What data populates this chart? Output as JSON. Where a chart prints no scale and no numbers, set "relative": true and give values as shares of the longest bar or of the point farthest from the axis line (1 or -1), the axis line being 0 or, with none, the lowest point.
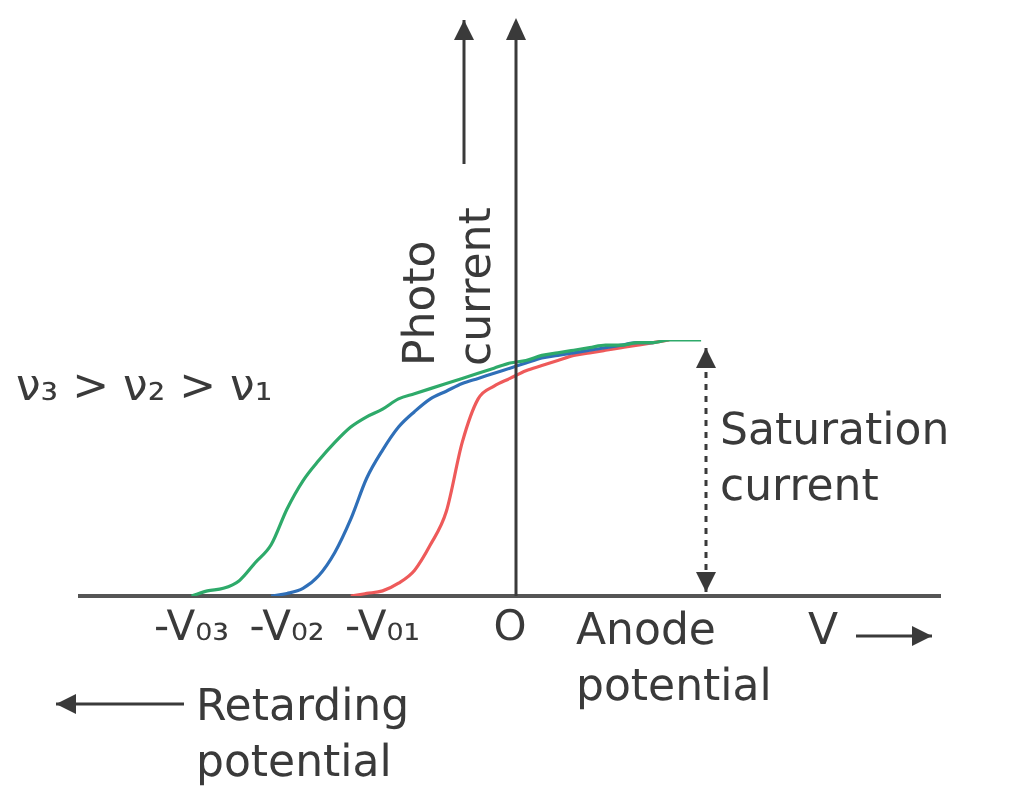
{
  "chart_data": {
    "type": "line",
    "relative": true,
    "ylabel": "Photo current",
    "xlabel": "Anode potential",
    "grid": false,
    "legend": false,
    "marker": "none",
    "line_style": "solid",
    "annotations": [
      "ν₃ > ν₂ > ν₁",
      "Saturation current",
      "V",
      "Retarding potential"
    ],
    "categories": [
      null,
      null,
      null,
      null,
      null,
      null,
      null,
      "-V₀₃",
      null,
      null,
      null,
      null,
      null,
      "-V₀₂",
      null,
      null,
      null,
      null,
      null,
      "-V₀₁",
      null,
      null,
      null,
      null,
      null,
      null,
      null,
      "O",
      null,
      null,
      null,
      null,
      null,
      null,
      null,
      null,
      null,
      null,
      null,
      null,
      null,
      null,
      null,
      null,
      null,
      null,
      null,
      null,
      null,
      null,
      null,
      null,
      null,
      null,
      null
    ],
    "series": [
      {
        "color": "#2eaa6a",
        "values": [
          null,
          null,
          null,
          null,
          null,
          null,
          null,
          0,
          0.02,
          0.03,
          0.06,
          0.13,
          0.2,
          0.34,
          0.45,
          0.53,
          0.6,
          0.66,
          0.7,
          0.73,
          0.77,
          0.79,
          0.81,
          0.83,
          0.85,
          0.87,
          0.89,
          0.91,
          0.92,
          0.94,
          0.95,
          0.96,
          0.97,
          0.98,
          0.98,
          0.99,
          0.99,
          1,
          1,
          1,
          null,
          null,
          null,
          null,
          null,
          null,
          null,
          null,
          null,
          null,
          null,
          null,
          null,
          null,
          null
        ]
      },
      {
        "color": "#2f6fb8",
        "values": [
          null,
          null,
          null,
          null,
          null,
          null,
          null,
          null,
          null,
          null,
          null,
          null,
          0,
          0.01,
          0.03,
          0.08,
          0.17,
          0.3,
          0.46,
          0.57,
          0.66,
          0.72,
          0.77,
          0.8,
          0.83,
          0.85,
          0.87,
          0.89,
          0.91,
          0.93,
          0.94,
          0.95,
          0.96,
          0.97,
          0.98,
          0.99,
          0.99,
          null,
          null,
          null,
          null,
          null,
          null,
          null,
          null,
          null,
          null,
          null,
          null,
          null,
          null,
          null,
          null,
          null,
          null
        ]
      },
      {
        "color": "#ee5a5a",
        "values": [
          null,
          null,
          null,
          null,
          null,
          null,
          null,
          null,
          null,
          null,
          null,
          null,
          null,
          null,
          null,
          null,
          null,
          0,
          0.01,
          0.02,
          0.05,
          0.1,
          0.2,
          0.33,
          0.6,
          0.77,
          0.82,
          0.85,
          0.88,
          0.9,
          0.92,
          0.94,
          0.95,
          0.96,
          0.97,
          0.98,
          0.99,
          1,
          null,
          null,
          null,
          null,
          null,
          null,
          null,
          null,
          null,
          null,
          null,
          null,
          null,
          null,
          null,
          null,
          null
        ]
      }
    ]
  }
}
